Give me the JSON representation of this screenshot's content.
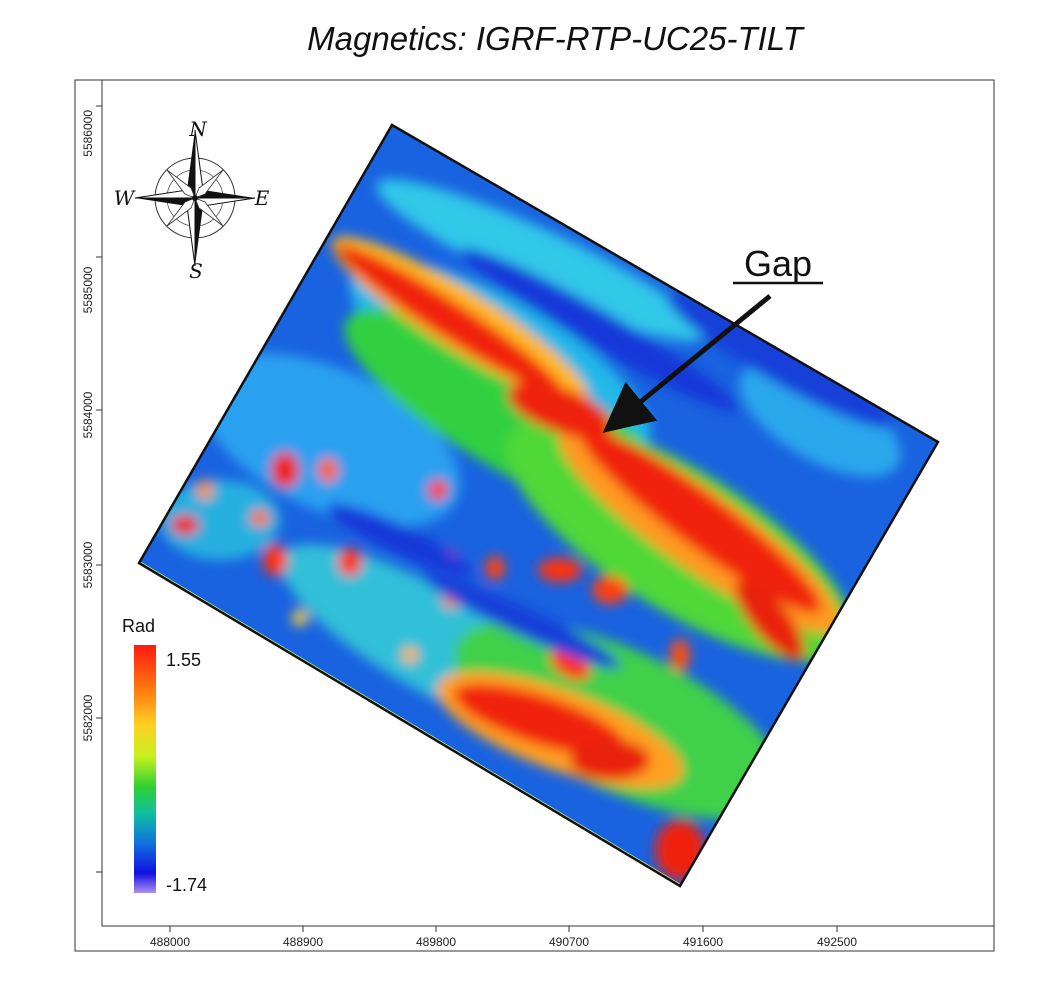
{
  "title": "Magnetics: IGRF-RTP-UC25-TILT",
  "annotation": {
    "label": "Gap"
  },
  "compass": {
    "north": "N",
    "south": "S",
    "east": "E",
    "west": "W"
  },
  "legend": {
    "title": "Rad",
    "max_label": "1.55",
    "min_label": "-1.74",
    "colors": [
      "#ff1a10",
      "#ff7a10",
      "#ffd020",
      "#c8f020",
      "#30d030",
      "#10c0a0",
      "#1070e0",
      "#1010e0",
      "#b090f0"
    ]
  },
  "x_axis": {
    "ticks": [
      "488000",
      "488900",
      "489800",
      "490700",
      "491600",
      "492500"
    ]
  },
  "y_axis": {
    "ticks": [
      "5586000",
      "5585000",
      "5584000",
      "5583000",
      "5582000",
      ""
    ]
  }
}
